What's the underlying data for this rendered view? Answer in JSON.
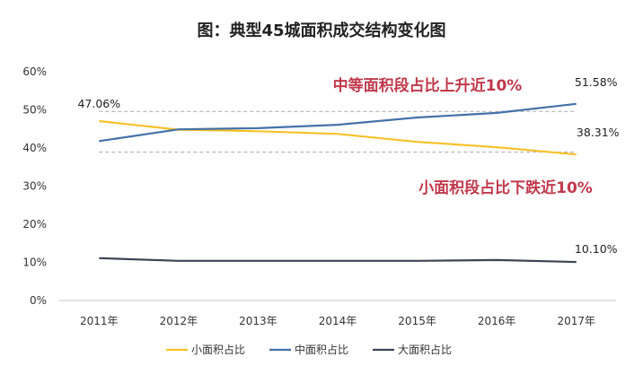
{
  "title": "图：典型45城面积成交结构变化图",
  "chart_data": {
    "type": "line",
    "title": "图：典型45城面积成交结构变化图",
    "categories": [
      "2011年",
      "2012年",
      "2013年",
      "2014年",
      "2015年",
      "2016年",
      "2017年"
    ],
    "ylim": [
      0,
      60
    ],
    "yticks": [
      0,
      10,
      20,
      30,
      40,
      50,
      60
    ],
    "ytick_labels": [
      "0%",
      "10%",
      "20%",
      "30%",
      "40%",
      "50%",
      "60%"
    ],
    "grid": false,
    "legend_position": "bottom",
    "series": [
      {
        "name": "小面积占比",
        "color": "#F5C22B",
        "values": [
          47.06,
          44.8,
          44.4,
          43.7,
          41.6,
          40.2,
          38.31
        ]
      },
      {
        "name": "中面积占比",
        "color": "#4472A8",
        "values": [
          41.8,
          44.9,
          45.2,
          46.1,
          48.0,
          49.2,
          51.58
        ]
      },
      {
        "name": "大面积占比",
        "color": "#3D4456",
        "values": [
          11.1,
          10.4,
          10.4,
          10.4,
          10.4,
          10.6,
          10.1
        ]
      }
    ],
    "data_labels": [
      {
        "text": "47.06%",
        "series": 0,
        "index": 0
      },
      {
        "text": "51.58%",
        "series": 1,
        "index": 6
      },
      {
        "text": "38.31%",
        "series": 0,
        "index": 6
      },
      {
        "text": "10.10%",
        "series": 2,
        "index": 6
      }
    ],
    "reference_lines": [
      49.6,
      38.9
    ],
    "annotations": [
      {
        "text": "中等面积段占比上升近10%",
        "color": "#C0394B"
      },
      {
        "text": "小面积段占比下跌近10%",
        "color": "#C0394B"
      }
    ]
  }
}
